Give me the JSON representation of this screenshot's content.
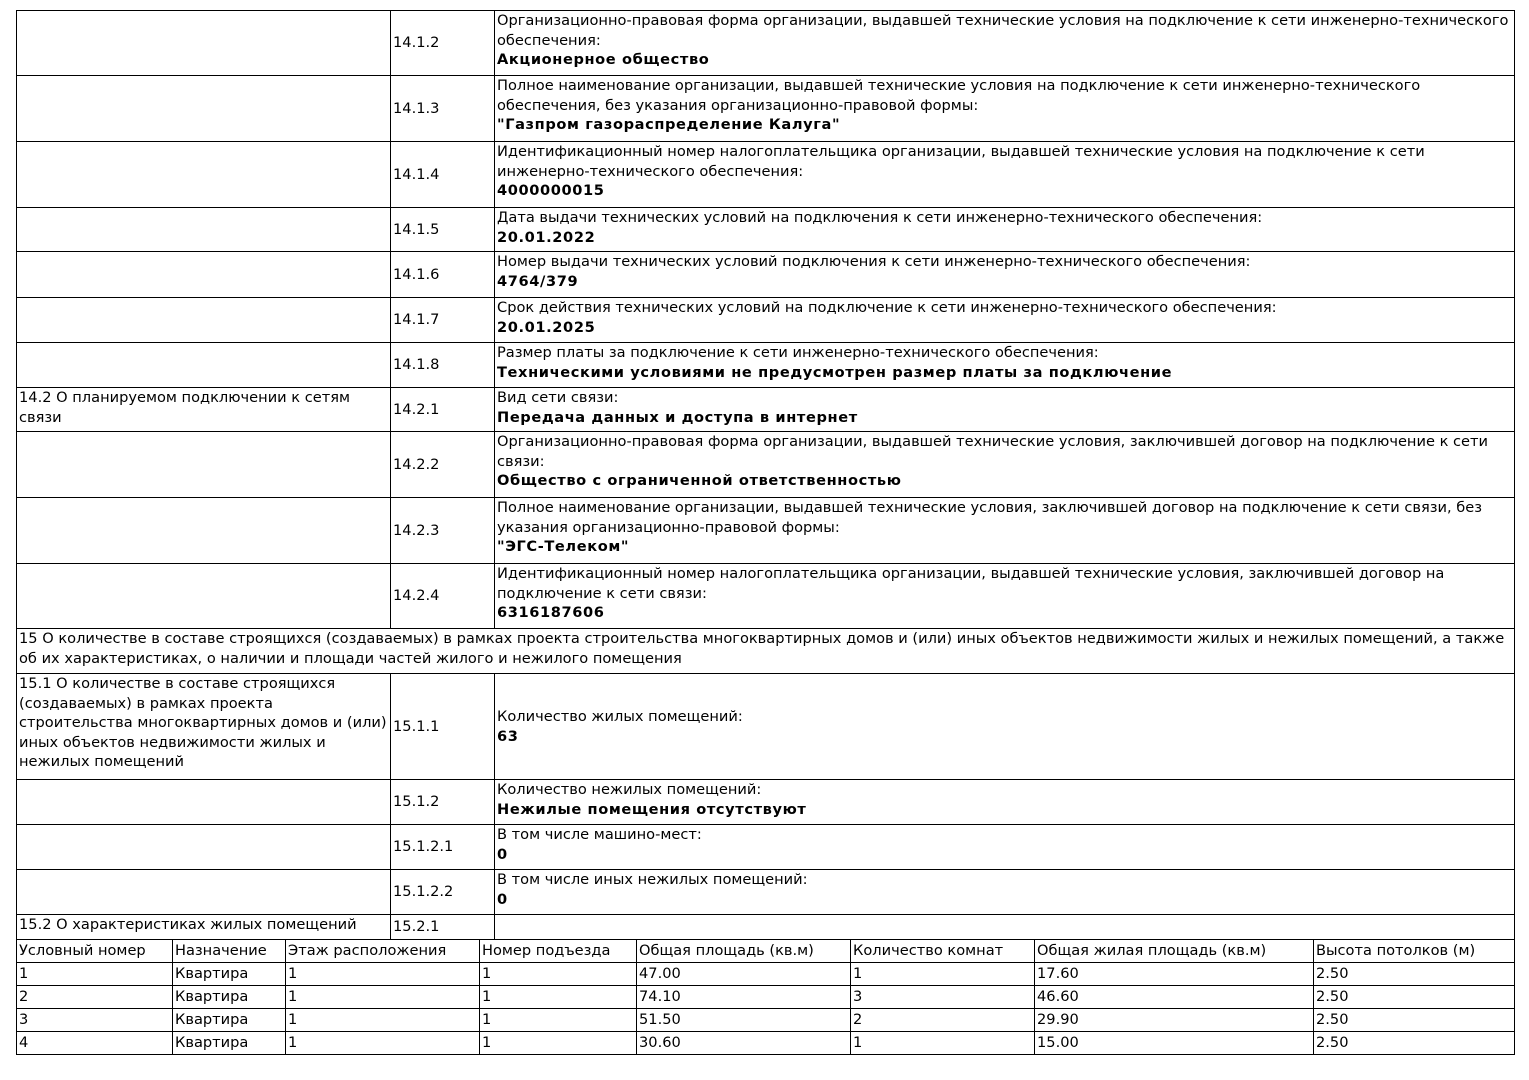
{
  "main_rows": [
    {
      "section": "",
      "code": "14.1.2",
      "label": "Организационно-правовая форма организации, выдавшей технические условия на подключение к сети инженерно-технического обеспечения:",
      "value": "Акционерное общество"
    },
    {
      "section": "",
      "code": "14.1.3",
      "label": "Полное наименование организации, выдавшей технические условия на подключение к сети инженерно-технического обеспечения, без указания организационно-правовой формы:",
      "value": "\"Газпром газораспределение Калуга\""
    },
    {
      "section": "",
      "code": "14.1.4",
      "label": "Идентификационный номер налогоплательщика организации, выдавшей технические условия на подключение к сети инженерно-технического обеспечения:",
      "value": "4000000015"
    },
    {
      "section": "",
      "code": "14.1.5",
      "label": "Дата выдачи технических условий на подключения к сети инженерно-технического обеспечения:",
      "value": "20.01.2022"
    },
    {
      "section": "",
      "code": "14.1.6",
      "label": "Номер выдачи технических условий подключения к сети инженерно-технического обеспечения:",
      "value": "4764/379"
    },
    {
      "section": "",
      "code": "14.1.7",
      "label": "Срок действия технических условий на подключение к сети инженерно-технического обеспечения:",
      "value": "20.01.2025"
    },
    {
      "section": "",
      "code": "14.1.8",
      "label": "Размер платы за подключение к сети инженерно-технического обеспечения:",
      "value": "Техническими условиями не предусмотрен размер платы за подключение"
    },
    {
      "section": "14.2 О планируемом подключении к сетям связи",
      "code": "14.2.1",
      "label": "Вид сети связи:",
      "value": "Передача данных и доступа в интернет"
    },
    {
      "section": "",
      "code": "14.2.2",
      "label": "Организационно-правовая форма организации, выдавшей технические условия, заключившей договор на подключение к сети связи:",
      "value": "Общество с ограниченной ответственностью"
    },
    {
      "section": "",
      "code": "14.2.3",
      "label": "Полное наименование организации, выдавшей технические условия, заключившей договор на подключение к сети связи, без указания организационно-правовой формы:",
      "value": "\"ЭГС-Телеком\""
    },
    {
      "section": "",
      "code": "14.2.4",
      "label": "Идентификационный номер налогоплательщика организации, выдавшей технические условия, заключившей договор на подключение к сети связи:",
      "value": "6316187606"
    },
    {
      "full": "15 О количестве в составе строящихся (создаваемых) в рамках проекта строительства многоквартирных домов и (или) иных объектов недвижимости жилых и нежилых помещений, а также об их характеристиках, о наличии и площади частей жилого и нежилого помещения"
    },
    {
      "section": "15.1 О количестве в составе строящихся (создаваемых) в рамках проекта строительства многоквартирных домов и (или) иных объектов недвижимости жилых и нежилых помещений",
      "code": "15.1.1",
      "label": "Количество жилых помещений:",
      "value": "63"
    },
    {
      "section": "",
      "code": "15.1.2",
      "label": "Количество нежилых помещений:",
      "value": "Нежилые помещения отсутствуют"
    },
    {
      "section": "",
      "code": "15.1.2.1",
      "label": "В том числе машино-мест:",
      "value": "0"
    },
    {
      "section": "",
      "code": "15.1.2.2",
      "label": "В том числе иных нежилых помещений:",
      "value": "0"
    },
    {
      "section": "15.2 О характеристиках жилых помещений",
      "code": "15.2.1",
      "label": "",
      "value": ""
    }
  ],
  "flats": {
    "headers": [
      "Условный номер",
      "Назначение",
      "Этаж расположения",
      "Номер подъезда",
      "Общая площадь (кв.м)",
      "Количество комнат",
      "Общая жилая площадь (кв.м)",
      "Высота потолков (м)"
    ],
    "rows": [
      [
        "1",
        "Квартира",
        "1",
        "1",
        "47.00",
        "1",
        "17.60",
        "2.50"
      ],
      [
        "2",
        "Квартира",
        "1",
        "1",
        "74.10",
        "3",
        "46.60",
        "2.50"
      ],
      [
        "3",
        "Квартира",
        "1",
        "1",
        "51.50",
        "2",
        "29.90",
        "2.50"
      ],
      [
        "4",
        "Квартира",
        "1",
        "1",
        "30.60",
        "1",
        "15.00",
        "2.50"
      ]
    ]
  }
}
